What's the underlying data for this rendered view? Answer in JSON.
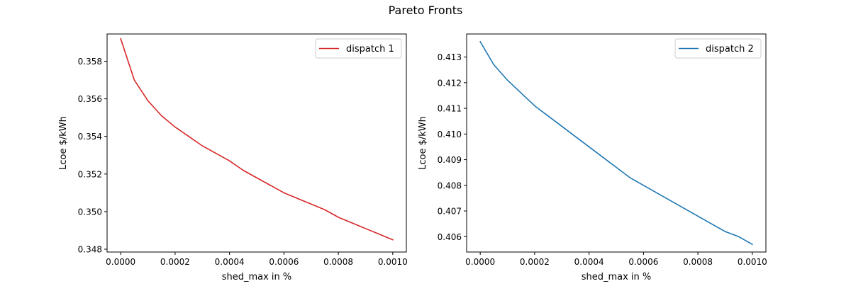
{
  "figure": {
    "suptitle": "Pareto Fronts"
  },
  "chart_data": [
    {
      "type": "line",
      "title": "",
      "xlabel": "shed_max in %",
      "ylabel": "Lcoe $/kWh",
      "xlim": [
        -5e-05,
        0.00105
      ],
      "ylim": [
        0.34785,
        0.35945
      ],
      "xticks": [
        0.0,
        0.0002,
        0.0004,
        0.0006,
        0.0008,
        0.001
      ],
      "xtick_labels": [
        "0.0000",
        "0.0002",
        "0.0004",
        "0.0006",
        "0.0008",
        "0.0010"
      ],
      "yticks": [
        0.348,
        0.35,
        0.352,
        0.354,
        0.356,
        0.358
      ],
      "ytick_labels": [
        "0.348",
        "0.350",
        "0.352",
        "0.354",
        "0.356",
        "0.358"
      ],
      "legend_position": "top-right",
      "grid": false,
      "series": [
        {
          "name": "dispatch 1",
          "color": "#d62728",
          "x": [
            0.0,
            5e-05,
            0.0001,
            0.00015,
            0.0002,
            0.00025,
            0.0003,
            0.00035,
            0.0004,
            0.00045,
            0.0005,
            0.00055,
            0.0006,
            0.00065,
            0.0007,
            0.00075,
            0.0008,
            0.00085,
            0.0009,
            0.00095,
            0.001
          ],
          "y": [
            0.3592,
            0.357,
            0.3559,
            0.3551,
            0.3545,
            0.354,
            0.3535,
            0.3531,
            0.3527,
            0.3522,
            0.3518,
            0.3514,
            0.351,
            0.3507,
            0.3504,
            0.3501,
            0.3497,
            0.3494,
            0.3491,
            0.3488,
            0.3485
          ]
        }
      ]
    },
    {
      "type": "line",
      "title": "",
      "xlabel": "shed_max in %",
      "ylabel": "Lcoe $/kWh",
      "xlim": [
        -5e-05,
        0.00105
      ],
      "ylim": [
        0.4054,
        0.4139
      ],
      "xticks": [
        0.0,
        0.0002,
        0.0004,
        0.0006,
        0.0008,
        0.001
      ],
      "xtick_labels": [
        "0.0000",
        "0.0002",
        "0.0004",
        "0.0006",
        "0.0008",
        "0.0010"
      ],
      "yticks": [
        0.406,
        0.407,
        0.408,
        0.409,
        0.41,
        0.411,
        0.412,
        0.413
      ],
      "ytick_labels": [
        "0.406",
        "0.407",
        "0.408",
        "0.409",
        "0.410",
        "0.411",
        "0.412",
        "0.413"
      ],
      "legend_position": "top-right",
      "grid": false,
      "series": [
        {
          "name": "dispatch 2",
          "color": "#1f77b4",
          "x": [
            0.0,
            5e-05,
            0.0001,
            0.00015,
            0.0002,
            0.00025,
            0.0003,
            0.00035,
            0.0004,
            0.00045,
            0.0005,
            0.00055,
            0.0006,
            0.00065,
            0.0007,
            0.00075,
            0.0008,
            0.00085,
            0.0009,
            0.00095,
            0.001
          ],
          "y": [
            0.4136,
            0.4127,
            0.4121,
            0.4116,
            0.4111,
            0.4107,
            0.4103,
            0.4099,
            0.4095,
            0.4091,
            0.4087,
            0.4083,
            0.408,
            0.4077,
            0.4074,
            0.4071,
            0.4068,
            0.4065,
            0.4062,
            0.406,
            0.4057
          ]
        }
      ]
    }
  ]
}
